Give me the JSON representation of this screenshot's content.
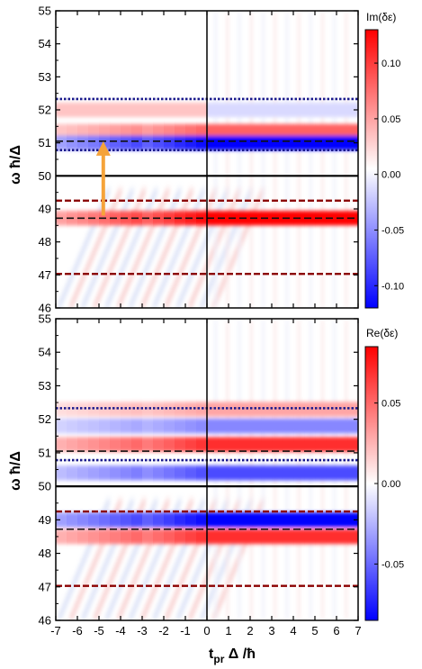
{
  "chart_data": [
    {
      "type": "heatmap",
      "panel": "top",
      "title": "",
      "xlabel": "",
      "ylabel": "ω ħ/Δ",
      "colorbar_label": "Im(δε)",
      "xlim": [
        -7,
        7
      ],
      "ylim": [
        46,
        55
      ],
      "yticks": [
        "46",
        "47",
        "48",
        "49",
        "50",
        "51",
        "52",
        "53",
        "54",
        "55"
      ],
      "colorbar_ticks": [
        "0.10",
        "0.05",
        "0.00",
        "-0.05",
        "-0.10"
      ],
      "colorbar_values": [
        0.1,
        0.05,
        0.0,
        -0.05,
        -0.1
      ],
      "colorbar_range": [
        -0.12,
        0.13
      ],
      "reference_lines": [
        {
          "y": 52.33,
          "style": "dotted",
          "color": "#1a1a8c"
        },
        {
          "y": 51.05,
          "style": "dashed",
          "color": "#111111"
        },
        {
          "y": 50.78,
          "style": "dotted",
          "color": "#1a1a8c"
        },
        {
          "y": 50.0,
          "style": "solid",
          "color": "#000000"
        },
        {
          "y": 49.25,
          "style": "dashed",
          "color": "#8b0000"
        },
        {
          "y": 48.72,
          "style": "dashed",
          "color": "#111111"
        },
        {
          "y": 47.03,
          "style": "dashed",
          "color": "#8b0000"
        }
      ],
      "vertical_line": {
        "x": 0
      },
      "bands": [
        {
          "y": 52.0,
          "sign": "positive-then-negative",
          "peak": 0.03
        },
        {
          "y": 51.35,
          "sign": "positive",
          "peak": 0.08
        },
        {
          "y": 51.0,
          "sign": "negative",
          "peak": -0.12
        },
        {
          "y": 48.72,
          "sign": "positive",
          "peak": 0.13
        }
      ],
      "arrow": {
        "x": -4.8,
        "y_from": 48.8,
        "y_to": 51.05,
        "color": "#f5a33a"
      }
    },
    {
      "type": "heatmap",
      "panel": "bottom",
      "title": "",
      "xlabel": "t_pr Δ /ħ",
      "ylabel": "ω ħ/Δ",
      "colorbar_label": "Re(δε)",
      "xlim": [
        -7,
        7
      ],
      "ylim": [
        46,
        55
      ],
      "xticks": [
        "-7",
        "-6",
        "-5",
        "-4",
        "-3",
        "-2",
        "-1",
        "0",
        "1",
        "2",
        "3",
        "4",
        "5",
        "6",
        "7"
      ],
      "yticks": [
        "46",
        "47",
        "48",
        "49",
        "50",
        "51",
        "52",
        "53",
        "54",
        "55"
      ],
      "colorbar_ticks": [
        "0.05",
        "0.00",
        "-0.05"
      ],
      "colorbar_values": [
        0.05,
        0.0,
        -0.05
      ],
      "colorbar_range": [
        -0.085,
        0.085
      ],
      "reference_lines": [
        {
          "y": 52.33,
          "style": "dotted",
          "color": "#1a1a8c"
        },
        {
          "y": 51.05,
          "style": "dashed",
          "color": "#111111"
        },
        {
          "y": 50.78,
          "style": "dotted",
          "color": "#1a1a8c"
        },
        {
          "y": 50.0,
          "style": "solid",
          "color": "#000000"
        },
        {
          "y": 49.25,
          "style": "dashed",
          "color": "#8b0000"
        },
        {
          "y": 48.72,
          "style": "dashed",
          "color": "#111111"
        },
        {
          "y": 47.03,
          "style": "dashed",
          "color": "#8b0000"
        }
      ],
      "vertical_line": {
        "x": 0
      },
      "bands": [
        {
          "y": 52.3,
          "sign": "positive",
          "peak": 0.03
        },
        {
          "y": 51.8,
          "sign": "negative",
          "peak": -0.04
        },
        {
          "y": 51.25,
          "sign": "positive",
          "peak": 0.07
        },
        {
          "y": 50.4,
          "sign": "negative",
          "peak": -0.06
        },
        {
          "y": 49.0,
          "sign": "negative",
          "peak": -0.085
        },
        {
          "y": 48.5,
          "sign": "positive",
          "peak": 0.07
        }
      ]
    }
  ],
  "colors": {
    "positive": "#ff0000",
    "zero": "#ffffff",
    "negative": "#0000ff",
    "arrow": "#f5a33a"
  }
}
